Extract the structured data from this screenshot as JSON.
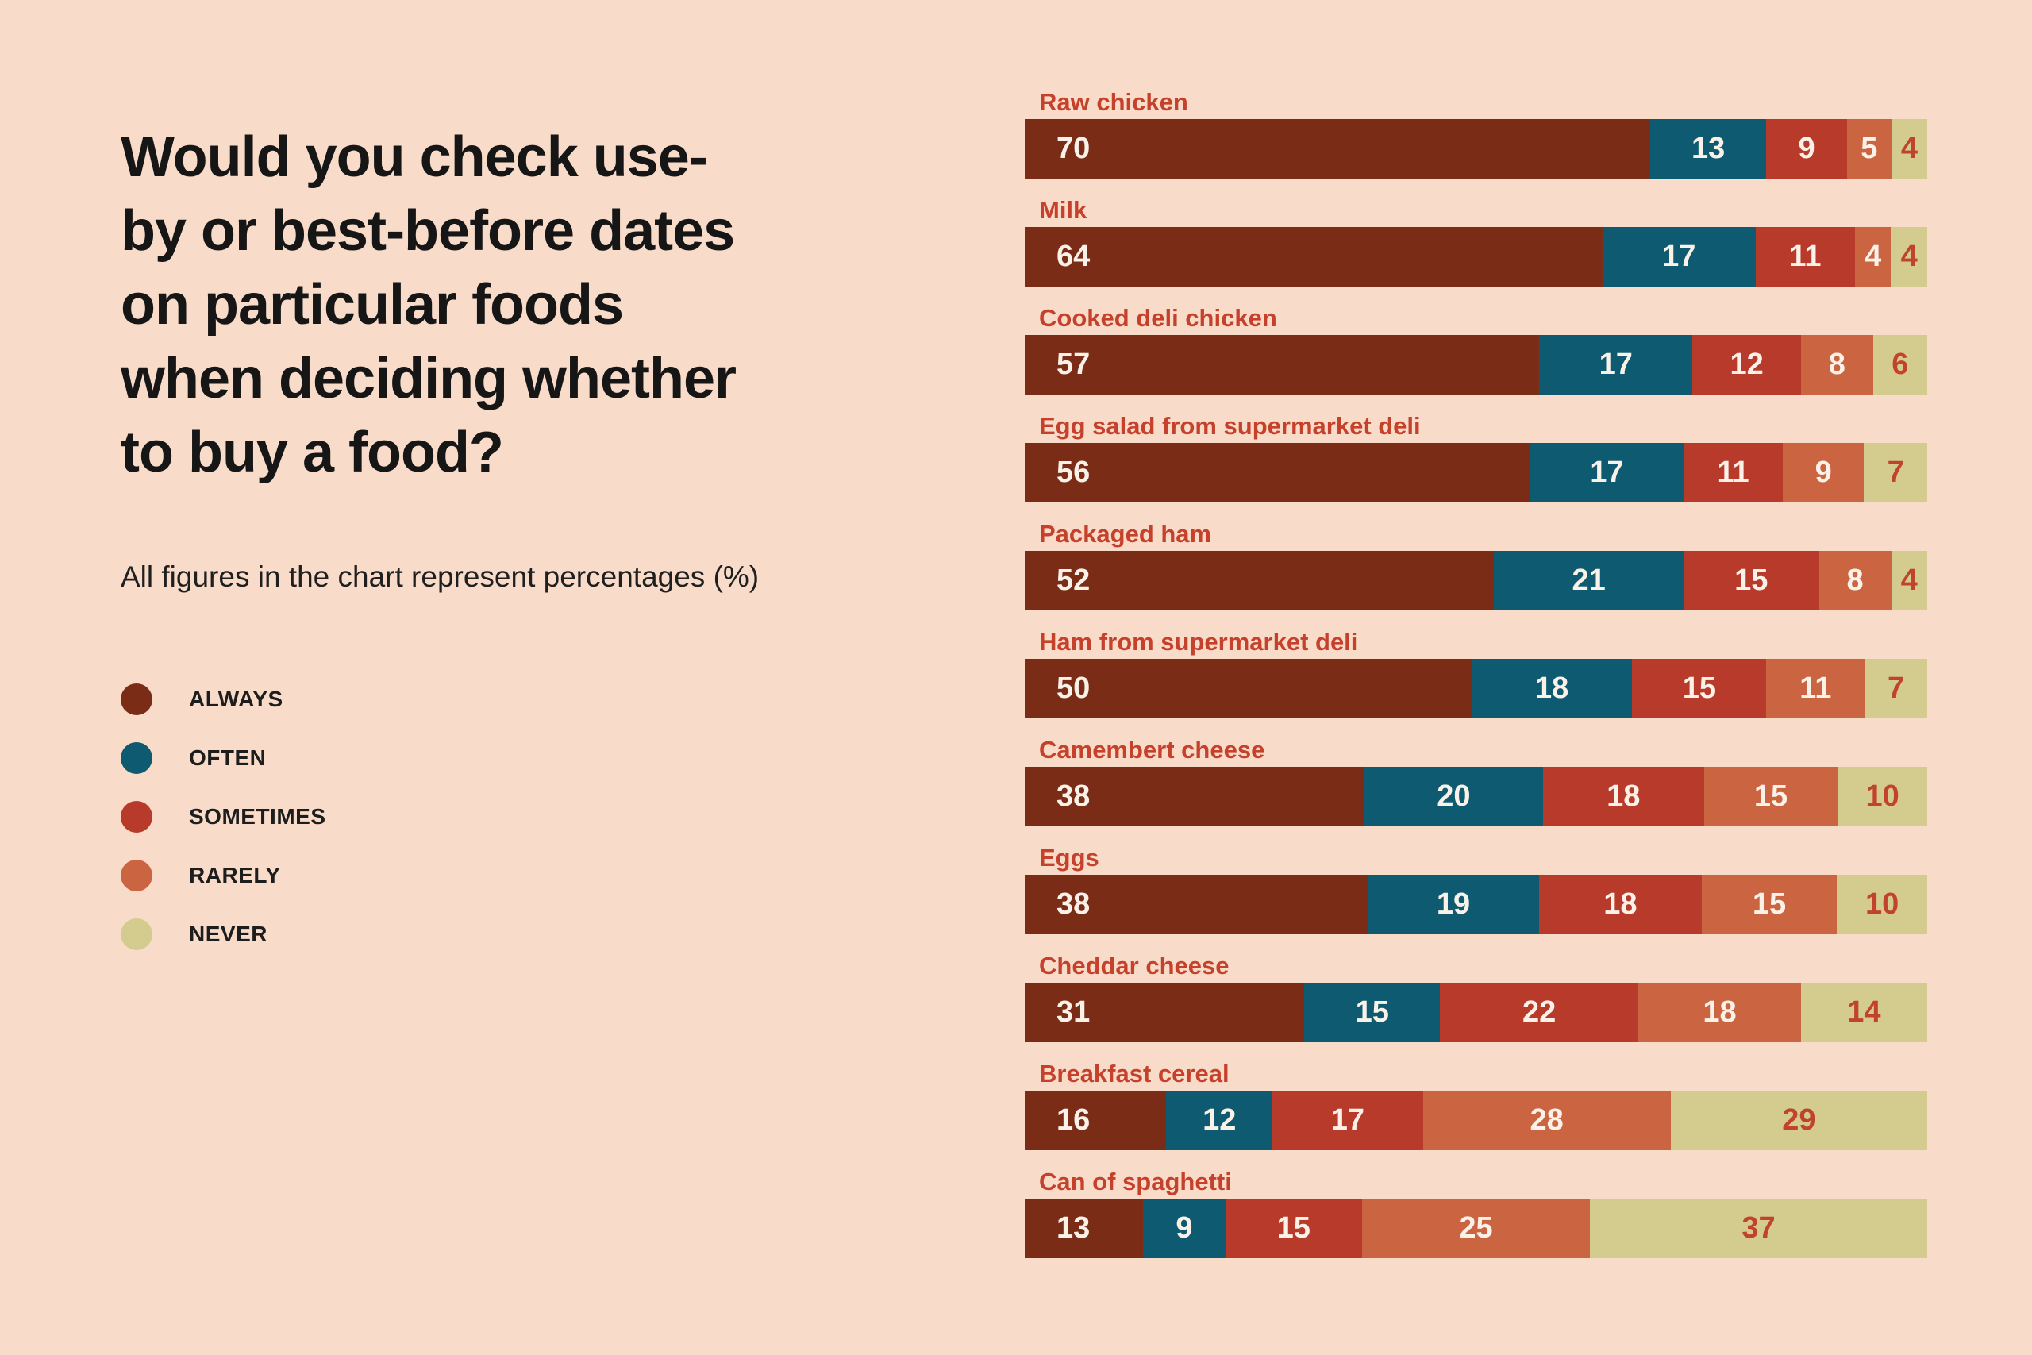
{
  "background_color": "#f8dcc9",
  "header": {
    "title": "Would you check use-\nby or best-before dates\non particular foods\nwhen deciding whether\nto buy a food?",
    "subtitle": "All figures in the chart represent percentages (%)"
  },
  "legend": {
    "items": [
      {
        "label": "ALWAYS",
        "color": "#7a2c17"
      },
      {
        "label": "OFTEN",
        "color": "#0e5a70"
      },
      {
        "label": "SOMETIMES",
        "color": "#b83a2b"
      },
      {
        "label": "RARELY",
        "color": "#ca6441"
      },
      {
        "label": "NEVER",
        "color": "#d3cc8e"
      }
    ]
  },
  "chart_data": {
    "type": "bar",
    "orientation": "horizontal-stacked",
    "unit": "percent",
    "title": "Would you check use-by or best-before dates on particular foods when deciding whether to buy a food?",
    "note": "All figures in the chart represent percentages (%)",
    "legend_position": "left",
    "axis": {
      "x_hidden": true,
      "y_hidden": true,
      "grid": false,
      "bar_width_represents": "100%"
    },
    "category_label_color": "#c5412b",
    "value_label_color_on_segment": "#faf2e9",
    "value_label_color_on_never_segment": "#c2432c",
    "categories": [
      "Raw chicken",
      "Milk",
      "Cooked deli chicken",
      "Egg salad from supermarket deli",
      "Packaged ham",
      "Ham from supermarket deli",
      "Camembert cheese",
      "Eggs",
      "Cheddar cheese",
      "Breakfast cereal",
      "Can of spaghetti"
    ],
    "series": [
      {
        "name": "ALWAYS",
        "color": "#7a2c17",
        "values": [
          70,
          64,
          57,
          56,
          52,
          50,
          38,
          38,
          31,
          16,
          13
        ]
      },
      {
        "name": "OFTEN",
        "color": "#0e5a70",
        "values": [
          13,
          17,
          17,
          17,
          21,
          18,
          20,
          19,
          15,
          12,
          9
        ]
      },
      {
        "name": "SOMETIMES",
        "color": "#b83a2b",
        "values": [
          9,
          11,
          12,
          11,
          15,
          15,
          18,
          18,
          22,
          17,
          15
        ]
      },
      {
        "name": "RARELY",
        "color": "#ca6441",
        "values": [
          5,
          4,
          8,
          9,
          8,
          11,
          15,
          15,
          18,
          28,
          25
        ]
      },
      {
        "name": "NEVER",
        "color": "#d3cc8e",
        "values": [
          4,
          4,
          6,
          7,
          4,
          7,
          10,
          10,
          14,
          29,
          37
        ]
      }
    ]
  }
}
